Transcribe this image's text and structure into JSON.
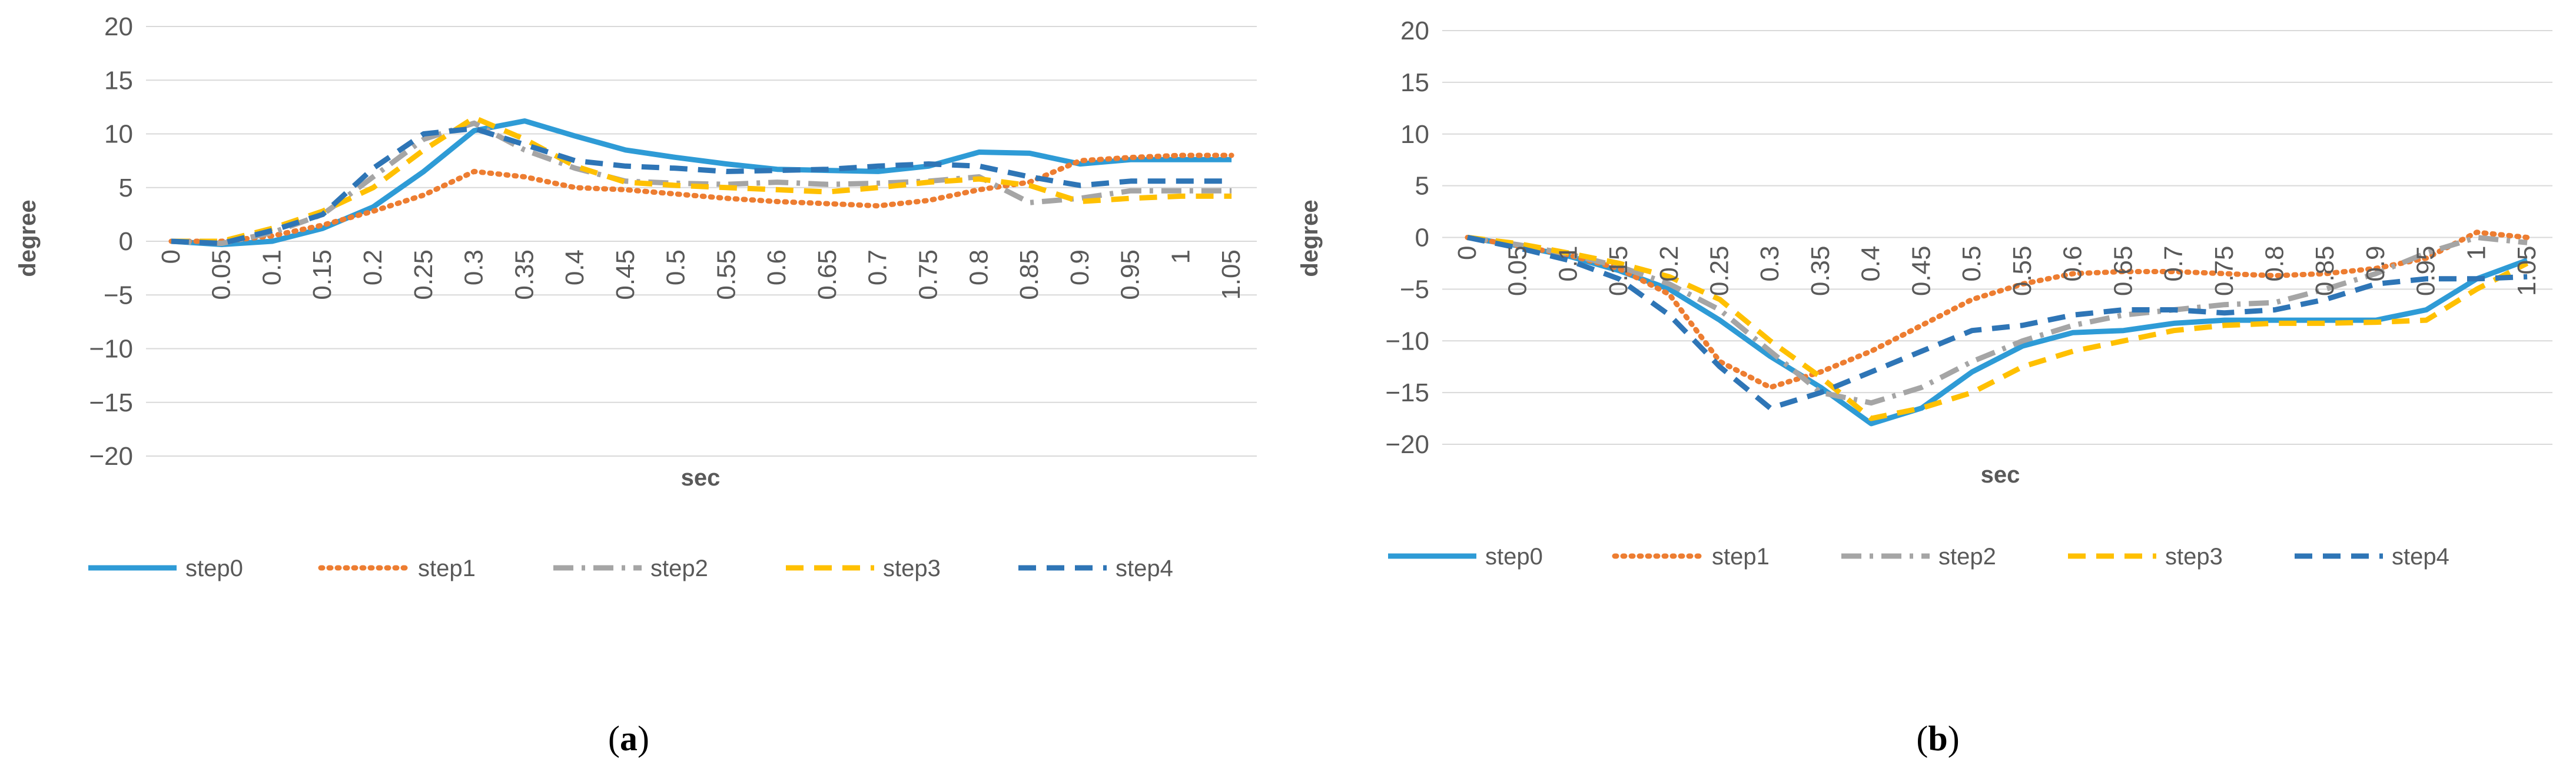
{
  "chart_data": [
    {
      "panel": "a",
      "caption": "(a)",
      "caption_letter": "a",
      "type": "line",
      "xlabel": "sec",
      "ylabel": "degree",
      "ylim": [
        -20,
        20
      ],
      "yticks": [
        20,
        15,
        10,
        5,
        0,
        -5,
        -10,
        -15,
        -20
      ],
      "ytick_labels": [
        "20",
        "15",
        "10",
        "5",
        "0",
        "−5",
        "−10",
        "−15",
        "−20"
      ],
      "categories": [
        "0",
        "0.05",
        "0.1",
        "0.15",
        "0.2",
        "0.25",
        "0.3",
        "0.35",
        "0.4",
        "0.45",
        "0.5",
        "0.55",
        "0.6",
        "0.65",
        "0.7",
        "0.75",
        "0.8",
        "0.85",
        "0.9",
        "0.95",
        "1",
        "1.05"
      ],
      "grid": true,
      "legend_position": "bottom",
      "series": [
        {
          "name": "step0",
          "color": "#2E9BD6",
          "dash": "solid",
          "values": [
            0,
            -0.3,
            0,
            1.2,
            3.2,
            6.5,
            10.3,
            11.2,
            9.8,
            8.5,
            7.8,
            7.2,
            6.7,
            6.6,
            6.5,
            7,
            8.3,
            8.2,
            7.2,
            7.6,
            7.6,
            7.6
          ]
        },
        {
          "name": "step1",
          "color": "#ED7D31",
          "dash": "dotted",
          "values": [
            0,
            0,
            0.5,
            1.5,
            2.8,
            4.3,
            6.5,
            6,
            5,
            4.8,
            4.4,
            4,
            3.7,
            3.5,
            3.3,
            3.8,
            4.8,
            5.5,
            7.5,
            7.8,
            8,
            8
          ]
        },
        {
          "name": "step2",
          "color": "#A5A5A5",
          "dash": "dashdot",
          "values": [
            0,
            -0.2,
            0.8,
            2.5,
            6,
            9.5,
            11,
            8.5,
            6.8,
            5.6,
            5.4,
            5.3,
            5.5,
            5.3,
            5.4,
            5.6,
            6,
            3.6,
            4,
            4.7,
            4.7,
            4.7
          ]
        },
        {
          "name": "step3",
          "color": "#FFC000",
          "dash": "dashed",
          "values": [
            0,
            0,
            1.2,
            2.8,
            5,
            8.5,
            11.5,
            9.5,
            7,
            5.5,
            5.2,
            5,
            4.8,
            4.6,
            5,
            5.5,
            5.8,
            5.2,
            3.7,
            4,
            4.2,
            4.2
          ]
        },
        {
          "name": "step4",
          "color": "#2E75B6",
          "dash": "dashed",
          "values": [
            0,
            -0.2,
            1,
            2.5,
            6.8,
            10,
            10.5,
            9,
            7.5,
            7,
            6.8,
            6.5,
            6.6,
            6.7,
            7,
            7.2,
            7,
            6,
            5.2,
            5.6,
            5.6,
            5.6
          ]
        }
      ]
    },
    {
      "panel": "b",
      "caption": "(b)",
      "caption_letter": "b",
      "type": "line",
      "xlabel": "sec",
      "ylabel": "degree",
      "ylim": [
        -20,
        20
      ],
      "yticks": [
        20,
        15,
        10,
        5,
        0,
        -5,
        -10,
        -15,
        -20
      ],
      "ytick_labels": [
        "20",
        "15",
        "10",
        "5",
        "0",
        "−5",
        "−10",
        "−15",
        "−20"
      ],
      "categories": [
        "0",
        "0.05",
        "0.1",
        "0.15",
        "0.2",
        "0.25",
        "0.3",
        "0.35",
        "0.4",
        "0.45",
        "0.5",
        "0.55",
        "0.6",
        "0.65",
        "0.7",
        "0.75",
        "0.8",
        "0.85",
        "0.9",
        "0.95",
        "1",
        "1.05"
      ],
      "grid": true,
      "legend_position": "bottom",
      "series": [
        {
          "name": "step0",
          "color": "#2E9BD6",
          "dash": "solid",
          "values": [
            0,
            -0.8,
            -1.8,
            -3.2,
            -5,
            -8,
            -11.5,
            -14.5,
            -18,
            -16.5,
            -13,
            -10.5,
            -9.2,
            -9,
            -8.3,
            -8,
            -8,
            -8,
            -8,
            -7,
            -4,
            -2.2
          ]
        },
        {
          "name": "step1",
          "color": "#ED7D31",
          "dash": "dotted",
          "values": [
            0,
            -0.8,
            -1.7,
            -3,
            -5.5,
            -12,
            -14.5,
            -13,
            -11,
            -8.5,
            -6,
            -4.5,
            -3.5,
            -3.3,
            -3.3,
            -3.5,
            -3.7,
            -3.5,
            -3,
            -2,
            0.5,
            0
          ]
        },
        {
          "name": "step2",
          "color": "#A5A5A5",
          "dash": "dashdot",
          "values": [
            0,
            -0.7,
            -1.6,
            -2.8,
            -4.5,
            -7,
            -11,
            -15,
            -16,
            -14.5,
            -12,
            -10,
            -8.5,
            -7.5,
            -7,
            -6.5,
            -6.3,
            -5,
            -3.5,
            -1.5,
            0,
            -0.5
          ]
        },
        {
          "name": "step3",
          "color": "#FFC000",
          "dash": "dashed",
          "values": [
            0,
            -0.6,
            -1.5,
            -2.5,
            -3.8,
            -6,
            -10,
            -13.5,
            -17.5,
            -16.5,
            -15,
            -12.5,
            -11,
            -10,
            -9,
            -8.5,
            -8.3,
            -8.3,
            -8.2,
            -8,
            -5,
            -2.5
          ]
        },
        {
          "name": "step4",
          "color": "#2E75B6",
          "dash": "dashed",
          "values": [
            0,
            -1,
            -2.2,
            -4,
            -7.5,
            -12.5,
            -16.5,
            -15,
            -13,
            -11,
            -9,
            -8.5,
            -7.5,
            -7,
            -7,
            -7.3,
            -7,
            -6,
            -4.5,
            -4,
            -4,
            -3.8
          ]
        }
      ]
    }
  ]
}
